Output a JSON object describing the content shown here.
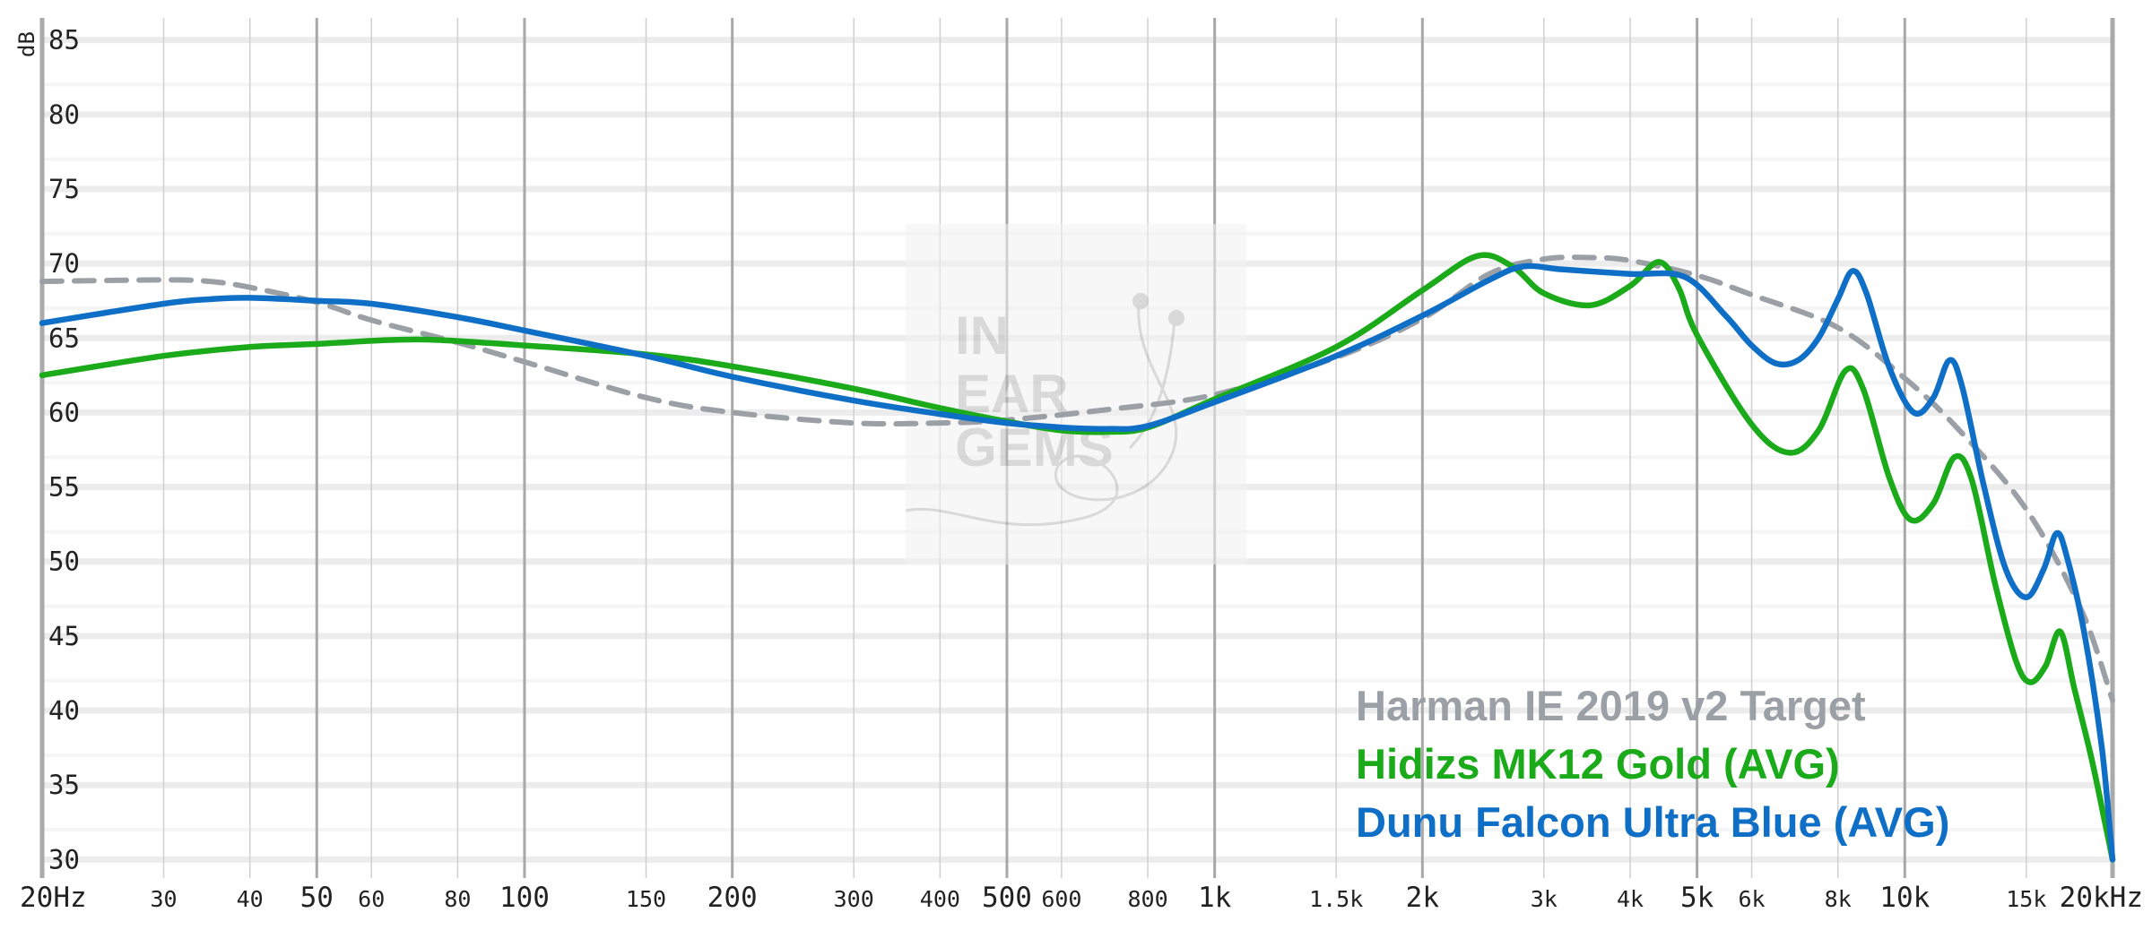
{
  "chart_data": {
    "type": "line",
    "ylabel": "dB",
    "ylim": [
      29,
      86
    ],
    "x_scale": "log",
    "xlim": [
      20,
      20000
    ],
    "y_ticks": [
      85,
      80,
      75,
      70,
      65,
      60,
      55,
      50,
      45,
      40,
      35,
      30
    ],
    "x_ticks": [
      {
        "value": 20,
        "label": "20Hz",
        "major": true
      },
      {
        "value": 30,
        "label": "30",
        "major": false
      },
      {
        "value": 40,
        "label": "40",
        "major": false
      },
      {
        "value": 50,
        "label": "50",
        "major": true
      },
      {
        "value": 60,
        "label": "60",
        "major": false
      },
      {
        "value": 80,
        "label": "80",
        "major": false
      },
      {
        "value": 100,
        "label": "100",
        "major": true
      },
      {
        "value": 150,
        "label": "150",
        "major": false
      },
      {
        "value": 200,
        "label": "200",
        "major": true
      },
      {
        "value": 300,
        "label": "300",
        "major": false
      },
      {
        "value": 400,
        "label": "400",
        "major": false
      },
      {
        "value": 500,
        "label": "500",
        "major": true
      },
      {
        "value": 600,
        "label": "600",
        "major": false
      },
      {
        "value": 800,
        "label": "800",
        "major": false
      },
      {
        "value": 1000,
        "label": "1k",
        "major": true
      },
      {
        "value": 1500,
        "label": "1.5k",
        "major": false
      },
      {
        "value": 2000,
        "label": "2k",
        "major": true
      },
      {
        "value": 3000,
        "label": "3k",
        "major": false
      },
      {
        "value": 4000,
        "label": "4k",
        "major": false
      },
      {
        "value": 5000,
        "label": "5k",
        "major": true
      },
      {
        "value": 6000,
        "label": "6k",
        "major": false
      },
      {
        "value": 8000,
        "label": "8k",
        "major": false
      },
      {
        "value": 10000,
        "label": "10k",
        "major": true
      },
      {
        "value": 15000,
        "label": "15k",
        "major": false
      },
      {
        "value": 20000,
        "label": "20kHz",
        "major": true
      }
    ],
    "grid": true,
    "legend_position": "bottom-right",
    "series": [
      {
        "name": "Harman IE 2019 v2 Target",
        "color": "#9aa0a6",
        "dashed": true,
        "points": [
          [
            20,
            68.8
          ],
          [
            30,
            68.9
          ],
          [
            35,
            68.8
          ],
          [
            40,
            68.4
          ],
          [
            50,
            67.4
          ],
          [
            60,
            66.2
          ],
          [
            80,
            64.7
          ],
          [
            100,
            63.4
          ],
          [
            150,
            61.0
          ],
          [
            200,
            60.0
          ],
          [
            300,
            59.3
          ],
          [
            400,
            59.3
          ],
          [
            500,
            59.5
          ],
          [
            700,
            60.2
          ],
          [
            1000,
            61.2
          ],
          [
            1500,
            63.7
          ],
          [
            2000,
            66.3
          ],
          [
            2500,
            69.3
          ],
          [
            3000,
            70.3
          ],
          [
            3500,
            70.4
          ],
          [
            4000,
            70.2
          ],
          [
            5000,
            69.2
          ],
          [
            6000,
            67.9
          ],
          [
            8000,
            65.7
          ],
          [
            10000,
            62.3
          ],
          [
            12000,
            58.8
          ],
          [
            15000,
            53.5
          ],
          [
            18000,
            46.8
          ],
          [
            20000,
            40.7
          ]
        ]
      },
      {
        "name": "Hidizs MK12 Gold (AVG)",
        "color": "#1aaa1a",
        "dashed": false,
        "points": [
          [
            20,
            62.5
          ],
          [
            30,
            63.8
          ],
          [
            40,
            64.4
          ],
          [
            50,
            64.6
          ],
          [
            70,
            64.9
          ],
          [
            100,
            64.5
          ],
          [
            150,
            63.9
          ],
          [
            200,
            63.1
          ],
          [
            300,
            61.6
          ],
          [
            400,
            60.3
          ],
          [
            500,
            59.4
          ],
          [
            600,
            58.8
          ],
          [
            700,
            58.7
          ],
          [
            800,
            59.0
          ],
          [
            1000,
            60.9
          ],
          [
            1500,
            64.4
          ],
          [
            2000,
            68.2
          ],
          [
            2400,
            70.5
          ],
          [
            2700,
            69.8
          ],
          [
            3000,
            68.0
          ],
          [
            3500,
            67.2
          ],
          [
            4000,
            68.5
          ],
          [
            4400,
            70.1
          ],
          [
            4700,
            68.4
          ],
          [
            5000,
            65.2
          ],
          [
            6000,
            59.2
          ],
          [
            6800,
            57.3
          ],
          [
            7500,
            58.8
          ],
          [
            8200,
            62.8
          ],
          [
            8700,
            61.6
          ],
          [
            9500,
            55.6
          ],
          [
            10200,
            52.8
          ],
          [
            11000,
            53.9
          ],
          [
            11800,
            57.0
          ],
          [
            12500,
            55.5
          ],
          [
            13500,
            48.6
          ],
          [
            14500,
            43.3
          ],
          [
            15200,
            41.9
          ],
          [
            16000,
            43.0
          ],
          [
            16800,
            45.3
          ],
          [
            17600,
            41.5
          ],
          [
            18600,
            37.0
          ],
          [
            19500,
            32.5
          ],
          [
            20000,
            30.0
          ]
        ]
      },
      {
        "name": "Dunu Falcon Ultra Blue (AVG)",
        "color": "#0f6fc6",
        "dashed": false,
        "points": [
          [
            20,
            66.0
          ],
          [
            30,
            67.3
          ],
          [
            35,
            67.6
          ],
          [
            40,
            67.7
          ],
          [
            50,
            67.5
          ],
          [
            60,
            67.3
          ],
          [
            80,
            66.4
          ],
          [
            100,
            65.5
          ],
          [
            150,
            63.8
          ],
          [
            200,
            62.4
          ],
          [
            300,
            60.8
          ],
          [
            400,
            59.9
          ],
          [
            500,
            59.3
          ],
          [
            600,
            59.0
          ],
          [
            700,
            58.9
          ],
          [
            800,
            59.1
          ],
          [
            1000,
            60.7
          ],
          [
            1500,
            63.8
          ],
          [
            2000,
            66.5
          ],
          [
            2500,
            68.9
          ],
          [
            2800,
            69.8
          ],
          [
            3200,
            69.6
          ],
          [
            4000,
            69.3
          ],
          [
            4800,
            69.1
          ],
          [
            5500,
            66.5
          ],
          [
            6000,
            64.5
          ],
          [
            6500,
            63.3
          ],
          [
            7000,
            63.5
          ],
          [
            7500,
            65.0
          ],
          [
            8000,
            67.6
          ],
          [
            8400,
            69.5
          ],
          [
            8800,
            68.0
          ],
          [
            9500,
            63.0
          ],
          [
            10300,
            60.0
          ],
          [
            11000,
            61.0
          ],
          [
            11600,
            63.5
          ],
          [
            12100,
            61.8
          ],
          [
            13000,
            55.2
          ],
          [
            14000,
            49.5
          ],
          [
            15000,
            47.6
          ],
          [
            15900,
            49.5
          ],
          [
            16600,
            51.9
          ],
          [
            17200,
            50.2
          ],
          [
            18200,
            45.2
          ],
          [
            19300,
            37.5
          ],
          [
            20000,
            30.0
          ]
        ]
      }
    ]
  }
}
